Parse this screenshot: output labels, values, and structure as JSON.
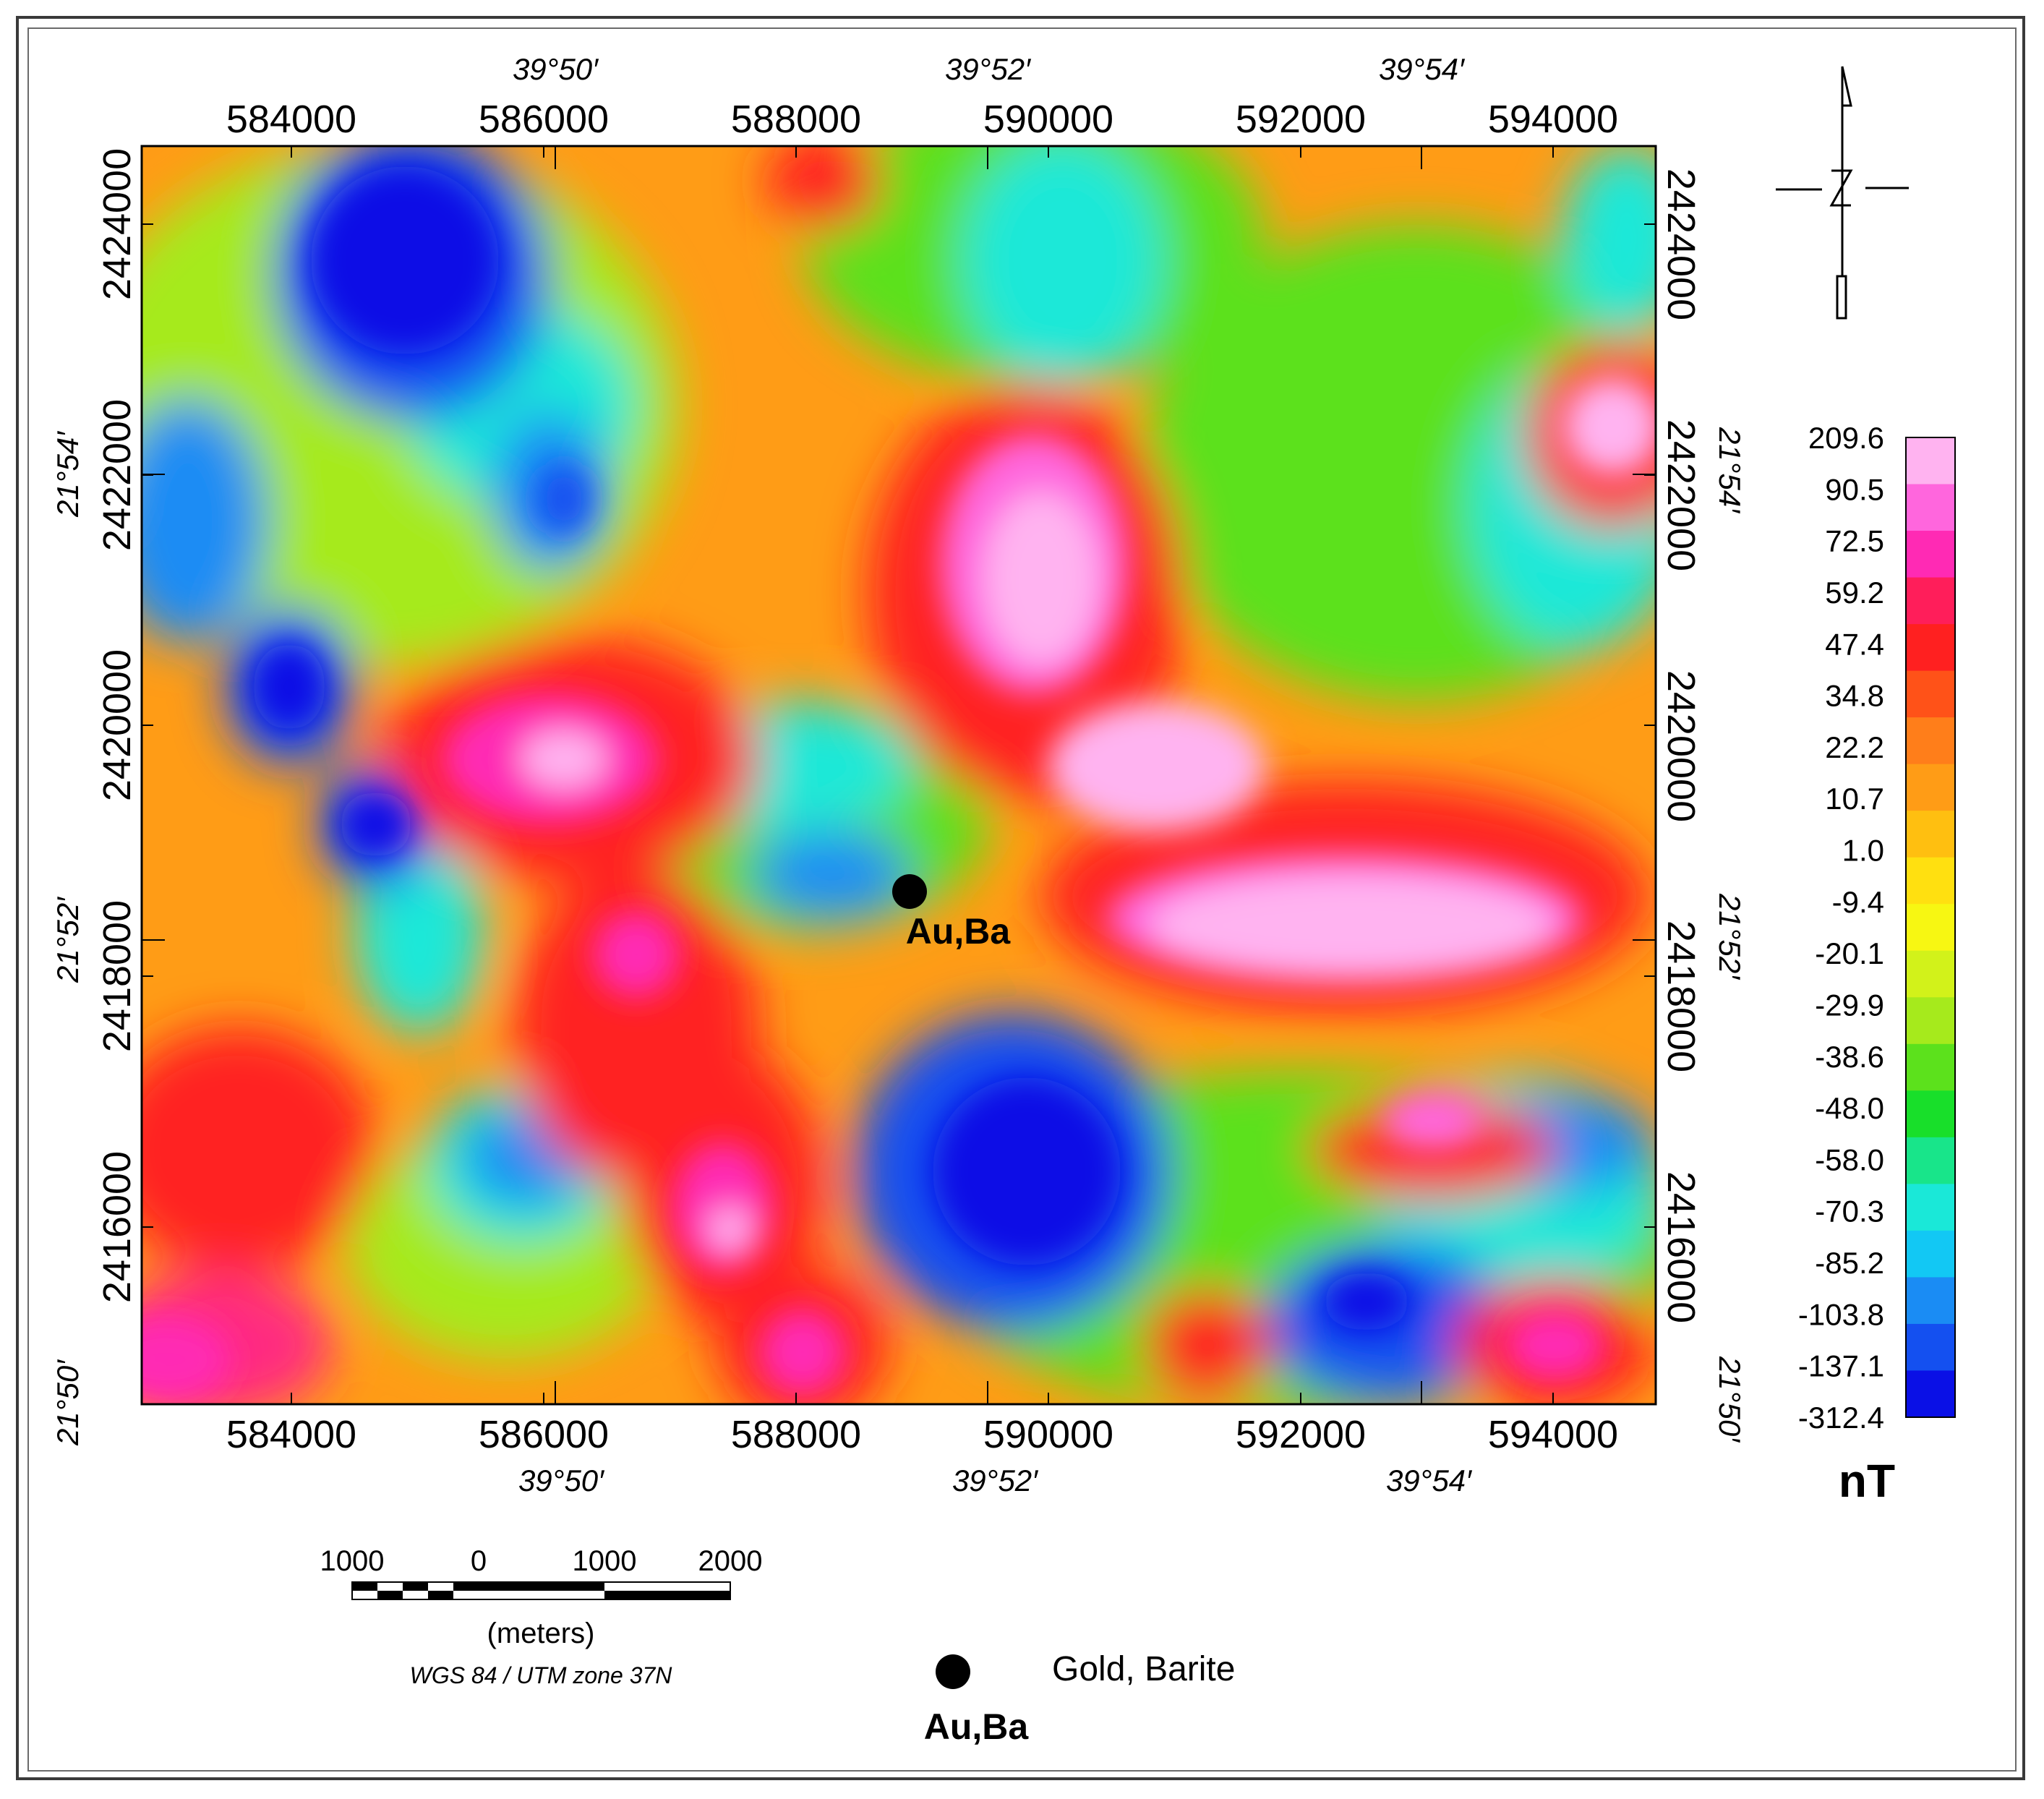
{
  "map": {
    "top_easting_labels": [
      "584000",
      "586000",
      "588000",
      "590000",
      "592000",
      "594000"
    ],
    "bottom_easting_labels": [
      "584000",
      "586000",
      "588000",
      "590000",
      "592000",
      "594000"
    ],
    "top_longitude_labels": [
      "39°50′",
      "39°52′",
      "39°54′"
    ],
    "bottom_longitude_labels": [
      "39°50′",
      "39°52′",
      "39°54′"
    ],
    "left_northing_labels": [
      "2424000",
      "2422000",
      "2420000",
      "2418000",
      "2416000"
    ],
    "right_northing_labels": [
      "2424000",
      "2422000",
      "2420000",
      "2418000",
      "2416000"
    ],
    "left_latitude_labels": [
      "21°54′",
      "21°52′",
      "21°50′"
    ],
    "right_latitude_labels": [
      "21°54′",
      "21°52′",
      "21°50′"
    ],
    "occurrence_label": "Au,Ba"
  },
  "legend": {
    "values": [
      "209.6",
      "90.5",
      "72.5",
      "59.2",
      "47.4",
      "34.8",
      "22.2",
      "10.7",
      "1.0",
      "-9.4",
      "-20.1",
      "-29.9",
      "-38.6",
      "-48.0",
      "-58.0",
      "-70.3",
      "-85.2",
      "-103.8",
      "-137.1",
      "-312.4"
    ],
    "unit": "nT",
    "colors": [
      "#ffb3f0",
      "#ff66dd",
      "#ff2ab4",
      "#ff1e5a",
      "#ff2020",
      "#ff5218",
      "#ff7e1a",
      "#ff9c16",
      "#ffbf10",
      "#ffe010",
      "#f7f712",
      "#d2f21a",
      "#a6ea1c",
      "#5ce11c",
      "#18df2a",
      "#18e58a",
      "#1ae8d8",
      "#12c8f4",
      "#1a8cf4",
      "#1450f0",
      "#0a10e6"
    ]
  },
  "scale_bar": {
    "labels": [
      "1000",
      "0",
      "1000",
      "2000"
    ],
    "unit": "(meters)",
    "projection": "WGS 84 / UTM zone 37N"
  },
  "key": {
    "symbol_label": "Au,Ba",
    "description": "Gold, Barite"
  }
}
